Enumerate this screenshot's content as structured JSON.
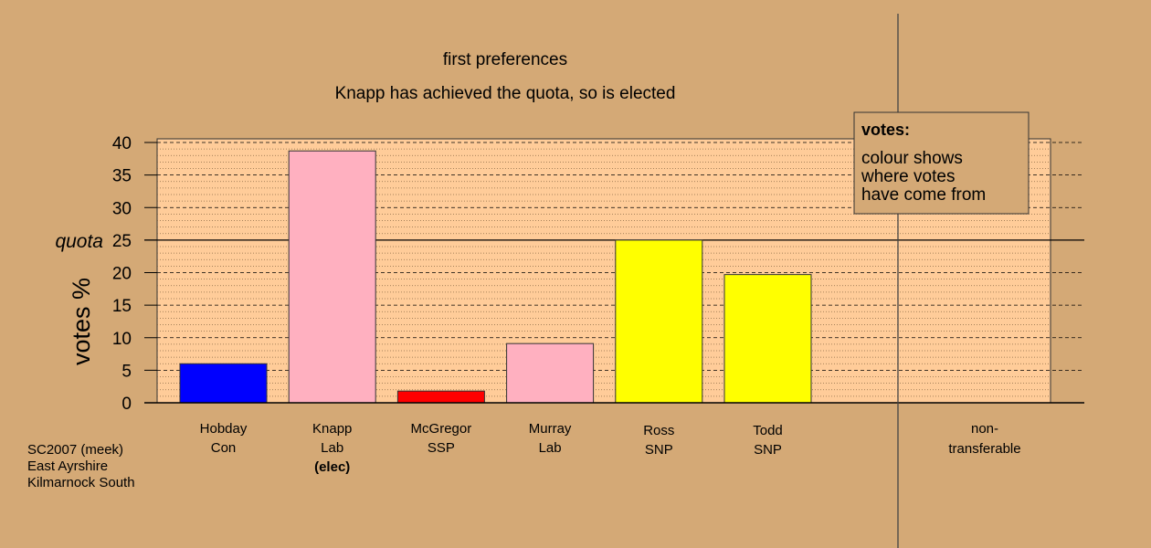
{
  "chart_data": {
    "type": "bar",
    "title": "first preferences",
    "subtitle": "Knapp has achieved the quota, so is elected",
    "ylabel": "votes %",
    "ylim": [
      0,
      40
    ],
    "yticks": [
      0,
      5,
      10,
      15,
      20,
      25,
      30,
      35,
      40
    ],
    "quota": {
      "label": "quota",
      "value": 25
    },
    "categories": [
      {
        "name": "Hobday",
        "party": "Con",
        "value": 6.0,
        "color": "#0000ff",
        "note": ""
      },
      {
        "name": "Knapp",
        "party": "Lab",
        "value": 38.7,
        "color": "#ffb0c0",
        "note": "(elec)"
      },
      {
        "name": "McGregor",
        "party": "SSP",
        "value": 1.8,
        "color": "#ff0000",
        "note": ""
      },
      {
        "name": "Murray",
        "party": "Lab",
        "value": 9.1,
        "color": "#ffb0c0",
        "note": ""
      },
      {
        "name": "Ross",
        "party": "SNP",
        "value": 25.0,
        "color": "#ffff00",
        "note": ""
      },
      {
        "name": "Todd",
        "party": "SNP",
        "value": 19.7,
        "color": "#ffff00",
        "note": ""
      }
    ],
    "nontransferable": {
      "line1": "non-",
      "line2": "transferable",
      "value": 0
    },
    "legend": {
      "title": "votes:",
      "lines": [
        "colour shows",
        "where votes",
        "have come from"
      ],
      "position": "top-right"
    },
    "colors": {
      "background": "#d4a976",
      "plot_background": "#ffcc99",
      "grid": "#000000"
    }
  },
  "caption": {
    "line1": "SC2007 (meek)",
    "line2": "East Ayrshire",
    "line3": "Kilmarnock South"
  }
}
